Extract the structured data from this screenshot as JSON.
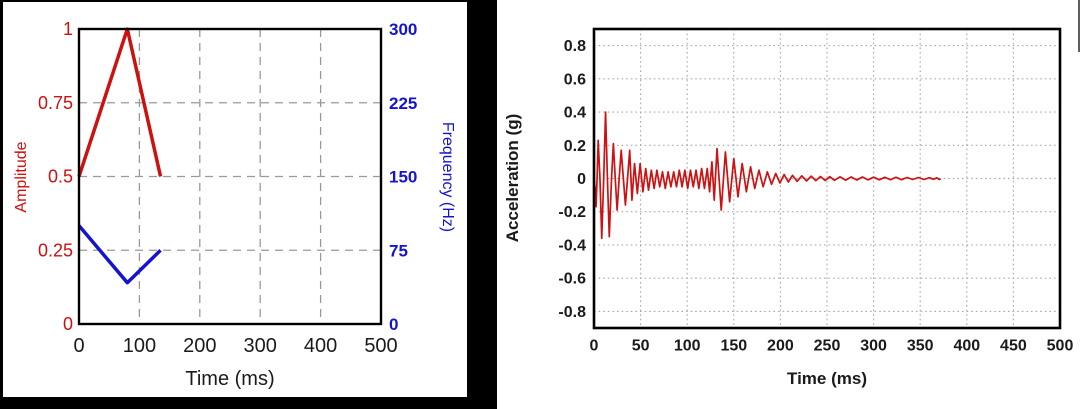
{
  "chart_data": [
    {
      "type": "line",
      "title": "",
      "xlabel": "Time (ms)",
      "xlim": [
        0,
        500
      ],
      "xticks": [
        0,
        100,
        200,
        300,
        400,
        500
      ],
      "ylabel_left": "Amplitude",
      "ylim_left": [
        0,
        1
      ],
      "yticks_left": [
        "0",
        "0.25",
        "0.5",
        "0.75",
        "1"
      ],
      "ylabel_right": "Frequency (Hz)",
      "ylim_right": [
        0,
        300
      ],
      "yticks_right": [
        "0",
        "75",
        "150",
        "225",
        "300"
      ],
      "grid": "dashed gray, on every major tick",
      "legend": "none",
      "colors": {
        "amplitude": "#cc1111",
        "frequency": "#1414cc",
        "axis": "#000000",
        "grid": "#999999"
      },
      "series": [
        {
          "name": "Amplitude",
          "axis": "left",
          "color": "#cc1111",
          "x": [
            0,
            80,
            135
          ],
          "y": [
            0.5,
            1.0,
            0.5
          ]
        },
        {
          "name": "Frequency (Hz)",
          "axis": "right",
          "color": "#1414cc",
          "x": [
            0,
            80,
            135
          ],
          "y": [
            100,
            42,
            75
          ]
        }
      ]
    },
    {
      "type": "line",
      "title": "",
      "xlabel": "Time (ms)",
      "xlim": [
        0,
        500
      ],
      "xticks": [
        0,
        50,
        100,
        150,
        200,
        250,
        300,
        350,
        400,
        450,
        500
      ],
      "ylabel": "Acceleration (g)",
      "ylim": [
        -0.9,
        0.9
      ],
      "yticks": [
        "0.8",
        "0.6",
        "0.4",
        "0.2",
        "0",
        "-0.2",
        "-0.4",
        "-0.6",
        "-0.8"
      ],
      "grid": "dotted light gray, on every major tick",
      "legend": "none",
      "colors": {
        "signal": "#cc1212",
        "axis": "#000000",
        "grid": "#aaaaaa"
      },
      "series": [
        {
          "name": "Acceleration",
          "color": "#cc1212",
          "points": [
            [
              0,
              0
            ],
            [
              1,
              -0.05
            ],
            [
              2.2,
              -0.17
            ],
            [
              3.3,
              0
            ],
            [
              4.5,
              0.23
            ],
            [
              6.4,
              0
            ],
            [
              8.3,
              -0.36
            ],
            [
              10.4,
              0
            ],
            [
              12.4,
              0.4
            ],
            [
              14.4,
              0
            ],
            [
              16.4,
              -0.35
            ],
            [
              18.8,
              0
            ],
            [
              20.8,
              0.21
            ],
            [
              22.8,
              0
            ],
            [
              24.8,
              -0.19
            ],
            [
              27,
              0
            ],
            [
              29.2,
              0.17
            ],
            [
              31.5,
              0
            ],
            [
              33.7,
              -0.16
            ],
            [
              36,
              0
            ],
            [
              38.3,
              0.17
            ],
            [
              40.7,
              -0.13
            ],
            [
              43.5,
              0.09
            ],
            [
              46.5,
              -0.09
            ],
            [
              49.5,
              0.09
            ],
            [
              52.5,
              -0.08
            ],
            [
              55.5,
              0.06
            ],
            [
              58.5,
              -0.07
            ],
            [
              61.5,
              0.05
            ],
            [
              64.5,
              -0.06
            ],
            [
              67.5,
              0.05
            ],
            [
              70.5,
              -0.05
            ],
            [
              73.5,
              0.04
            ],
            [
              76.5,
              -0.06
            ],
            [
              79.5,
              0.04
            ],
            [
              82.5,
              -0.05
            ],
            [
              85.5,
              0.04
            ],
            [
              88.5,
              -0.05
            ],
            [
              91.5,
              0.05
            ],
            [
              94.5,
              -0.05
            ],
            [
              97.5,
              0.05
            ],
            [
              100.5,
              -0.06
            ],
            [
              103.5,
              0.05
            ],
            [
              106.5,
              -0.05
            ],
            [
              109.5,
              0.05
            ],
            [
              112.5,
              -0.06
            ],
            [
              115.5,
              0.06
            ],
            [
              118.5,
              -0.06
            ],
            [
              121.5,
              0.06
            ],
            [
              124,
              -0.08
            ],
            [
              126.5,
              0.1
            ],
            [
              129,
              -0.13
            ],
            [
              132,
              0.18
            ],
            [
              136.5,
              -0.19
            ],
            [
              141,
              0.16
            ],
            [
              145.5,
              -0.14
            ],
            [
              150,
              0.12
            ],
            [
              154.5,
              -0.11
            ],
            [
              159,
              0.09
            ],
            [
              163.5,
              -0.08
            ],
            [
              168,
              0.07
            ],
            [
              172.5,
              -0.06
            ],
            [
              177,
              0.05
            ],
            [
              181.5,
              -0.05
            ],
            [
              186,
              0.04
            ],
            [
              190.5,
              -0.035
            ],
            [
              195,
              0.03
            ],
            [
              199.5,
              -0.027
            ],
            [
              204,
              0.024
            ],
            [
              208.5,
              -0.021
            ],
            [
              213,
              0.019
            ],
            [
              218,
              -0.017
            ],
            [
              223,
              0.016
            ],
            [
              228,
              -0.015
            ],
            [
              233,
              0.014
            ],
            [
              238,
              -0.013
            ],
            [
              243,
              0.012
            ],
            [
              248,
              -0.012
            ],
            [
              253,
              0.011
            ],
            [
              258,
              -0.011
            ],
            [
              264,
              0.01
            ],
            [
              270,
              -0.01
            ],
            [
              276,
              0.009
            ],
            [
              282,
              -0.009
            ],
            [
              288,
              0.009
            ],
            [
              294,
              -0.008
            ],
            [
              300,
              0.008
            ],
            [
              306,
              -0.008
            ],
            [
              312,
              0.007
            ],
            [
              318,
              -0.007
            ],
            [
              324,
              0.007
            ],
            [
              330,
              -0.007
            ],
            [
              336,
              0.006
            ],
            [
              342,
              -0.006
            ],
            [
              348,
              0.006
            ],
            [
              354,
              -0.006
            ],
            [
              360,
              0.005
            ],
            [
              364,
              -0.005
            ],
            [
              368,
              0.004
            ],
            [
              370.5,
              -0.006
            ],
            [
              372,
              -0.003
            ]
          ]
        }
      ]
    }
  ]
}
